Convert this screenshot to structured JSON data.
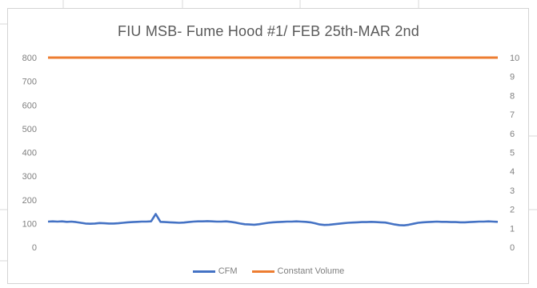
{
  "chart_data": {
    "type": "line",
    "title": "FIU MSB- Fume Hood #1/ FEB 25th-MAR 2nd",
    "y_left": {
      "ticks": [
        "0",
        "100",
        "200",
        "300",
        "400",
        "500",
        "600",
        "700",
        "800"
      ],
      "ylim": [
        0,
        800
      ]
    },
    "y_right": {
      "ticks": [
        "0",
        "1",
        "2",
        "3",
        "4",
        "5",
        "6",
        "7",
        "8",
        "9",
        "10"
      ],
      "ylim": [
        0,
        10
      ]
    },
    "series": [
      {
        "name": "CFM",
        "axis": "left",
        "color": "#4472c4",
        "values": [
          108,
          109,
          108,
          109,
          107,
          108,
          106,
          103,
          100,
          99,
          100,
          102,
          101,
          100,
          100,
          101,
          103,
          105,
          106,
          107,
          108,
          108,
          109,
          140,
          107,
          106,
          105,
          104,
          103,
          104,
          106,
          108,
          109,
          109,
          110,
          109,
          108,
          108,
          109,
          107,
          104,
          100,
          97,
          96,
          95,
          97,
          100,
          103,
          105,
          106,
          107,
          108,
          108,
          109,
          108,
          107,
          105,
          101,
          96,
          94,
          95,
          97,
          99,
          101,
          103,
          104,
          105,
          106,
          106,
          107,
          106,
          105,
          104,
          100,
          96,
          93,
          92,
          95,
          99,
          103,
          105,
          106,
          107,
          108,
          107,
          107,
          106,
          106,
          105,
          105,
          106,
          107,
          108,
          108,
          109,
          108,
          107
        ]
      },
      {
        "name": "Constant Volume",
        "axis": "right",
        "color": "#ed7d31",
        "values": [
          10,
          10
        ]
      }
    ],
    "legend_position": "bottom",
    "grid": false
  }
}
